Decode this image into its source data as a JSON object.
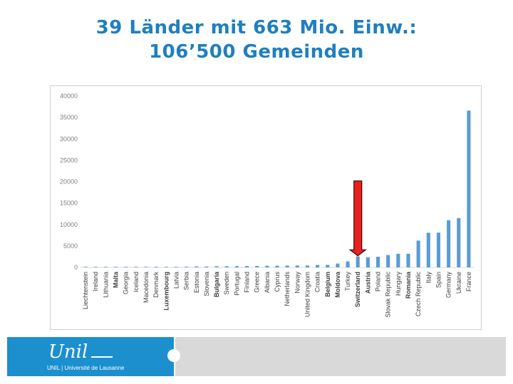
{
  "title": {
    "line1": "39 Länder mit 663 Mio. Einw.:",
    "line2": "106’500 Gemeinden"
  },
  "chart_data": {
    "type": "bar",
    "title": "",
    "xlabel": "",
    "ylabel": "",
    "ylim": [
      0,
      40000
    ],
    "yticks": [
      "40000",
      "35000",
      "30000",
      "25000",
      "20000",
      "15000",
      "10000",
      "5000",
      "0"
    ],
    "grid": false,
    "bar_color": "#5b9bd5",
    "highlight_arrow": {
      "category": "Switzerland",
      "color": "#e8211e"
    },
    "categories": [
      "Liechtenstein",
      "Ireland",
      "Lithuania",
      "Malta",
      "Georgia",
      "Iceland",
      "Macedonia",
      "Denmark",
      "Luxembourg",
      "Latvia",
      "Serbia",
      "Estonia",
      "Slovenia",
      "Bulgaria",
      "Sweden",
      "Portugal",
      "Finland",
      "Greece",
      "Albania",
      "Cyprus",
      "Netherlands",
      "Norway",
      "United Kingdom",
      "Croatia",
      "Belgium",
      "Moldova",
      "Turkey",
      "Switzerland",
      "Austria",
      "Poland",
      "Slovak Republic",
      "Hungary",
      "Romania",
      "Czech Republic",
      "Italy",
      "Spain",
      "Germany",
      "Ukraine",
      "France"
    ],
    "bold_categories": [
      "Malta",
      "Luxembourg",
      "Bulgaria",
      "Belgium",
      "Moldova",
      "Switzerland",
      "Austria",
      "Romania"
    ],
    "values": [
      11,
      34,
      60,
      68,
      69,
      74,
      84,
      98,
      106,
      118,
      150,
      226,
      211,
      264,
      290,
      308,
      320,
      325,
      373,
      380,
      418,
      430,
      437,
      556,
      589,
      898,
      1400,
      2551,
      2357,
      2479,
      2891,
      3175,
      3181,
      6250,
      8092,
      8116,
      11000,
      11500,
      36600
    ]
  },
  "footer": {
    "logo_mark": "Unil",
    "logo_text": "UNIL | Université de Lausanne"
  }
}
